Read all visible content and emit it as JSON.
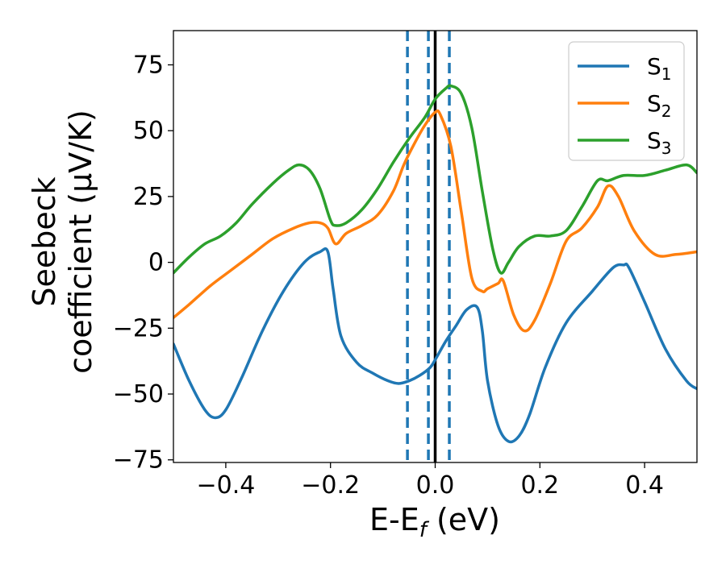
{
  "chart_data": {
    "type": "line",
    "xlabel": {
      "main": "E-E",
      "sub": "f",
      "unit": " (eV)"
    },
    "ylabel": {
      "line1": "Seebeck",
      "line2": "coefficient  (μV/K)"
    },
    "xlim": [
      -0.5,
      0.5
    ],
    "ylim": [
      -76,
      88
    ],
    "xticks": [
      -0.4,
      -0.2,
      0.0,
      0.2,
      0.4
    ],
    "xtick_labels": [
      "−0.4",
      "−0.2",
      "0.0",
      "0.2",
      "0.4"
    ],
    "yticks": [
      -75,
      -50,
      -25,
      0,
      25,
      50,
      75
    ],
    "ytick_labels": [
      "−75",
      "−50",
      "−25",
      "0",
      "25",
      "50",
      "75"
    ],
    "grid": false,
    "legend_position": "top-right",
    "reference_lines": {
      "solid": {
        "x": 0.0,
        "color": "#000000"
      },
      "dashed": {
        "x": [
          -0.053,
          -0.013,
          0.027
        ],
        "color": "#1f77b4"
      }
    },
    "series": [
      {
        "name": "S",
        "sub": "1",
        "color": "#1f77b4",
        "x": [
          -0.5,
          -0.47,
          -0.44,
          -0.42,
          -0.4,
          -0.37,
          -0.33,
          -0.29,
          -0.25,
          -0.22,
          -0.205,
          -0.195,
          -0.18,
          -0.15,
          -0.12,
          -0.09,
          -0.07,
          -0.05,
          -0.03,
          -0.01,
          0.0,
          0.02,
          0.04,
          0.06,
          0.08,
          0.09,
          0.1,
          0.12,
          0.14,
          0.16,
          0.18,
          0.21,
          0.25,
          0.3,
          0.34,
          0.36,
          0.37,
          0.4,
          0.44,
          0.48,
          0.5
        ],
        "y": [
          -31,
          -45,
          -56,
          -59,
          -56,
          -44,
          -26,
          -11,
          0,
          4,
          4,
          -10,
          -28,
          -38,
          -42,
          -45,
          -46,
          -45,
          -43,
          -40,
          -37,
          -30,
          -24,
          -18,
          -17,
          -26,
          -45,
          -62,
          -68,
          -66,
          -58,
          -40,
          -23,
          -11,
          -2,
          -1,
          -2,
          -15,
          -33,
          -45,
          -48
        ]
      },
      {
        "name": "S",
        "sub": "2",
        "color": "#ff7f0e",
        "x": [
          -0.5,
          -0.47,
          -0.43,
          -0.39,
          -0.35,
          -0.31,
          -0.27,
          -0.24,
          -0.22,
          -0.205,
          -0.19,
          -0.17,
          -0.14,
          -0.11,
          -0.08,
          -0.06,
          -0.04,
          -0.02,
          0.0,
          0.01,
          0.03,
          0.05,
          0.07,
          0.09,
          0.1,
          0.12,
          0.13,
          0.15,
          0.17,
          0.19,
          0.22,
          0.25,
          0.28,
          0.31,
          0.33,
          0.35,
          0.38,
          0.42,
          0.46,
          0.5
        ],
        "y": [
          -21,
          -16,
          -9,
          -3,
          3,
          9,
          13,
          15,
          15,
          13,
          7,
          11,
          14,
          18,
          27,
          37,
          45,
          52,
          57,
          56,
          44,
          19,
          -6,
          -11,
          -10,
          -8,
          -7,
          -20,
          -26,
          -22,
          -8,
          8,
          13,
          21,
          29,
          25,
          12,
          3,
          3,
          4
        ]
      },
      {
        "name": "S",
        "sub": "3",
        "color": "#2ca02c",
        "x": [
          -0.5,
          -0.47,
          -0.44,
          -0.41,
          -0.38,
          -0.35,
          -0.31,
          -0.28,
          -0.26,
          -0.24,
          -0.22,
          -0.2,
          -0.19,
          -0.17,
          -0.14,
          -0.11,
          -0.08,
          -0.05,
          -0.02,
          0.0,
          0.02,
          0.03,
          0.05,
          0.07,
          0.09,
          0.11,
          0.125,
          0.14,
          0.16,
          0.19,
          0.22,
          0.25,
          0.28,
          0.31,
          0.33,
          0.36,
          0.4,
          0.44,
          0.48,
          0.5
        ],
        "y": [
          -4,
          2,
          7,
          10,
          15,
          22,
          30,
          35,
          37,
          35,
          28,
          16,
          14,
          15,
          20,
          28,
          38,
          47,
          55,
          62,
          66,
          67,
          64,
          51,
          27,
          5,
          -4,
          0,
          6,
          10,
          10,
          12,
          21,
          31,
          31,
          33,
          33,
          35,
          37,
          34
        ]
      }
    ]
  }
}
